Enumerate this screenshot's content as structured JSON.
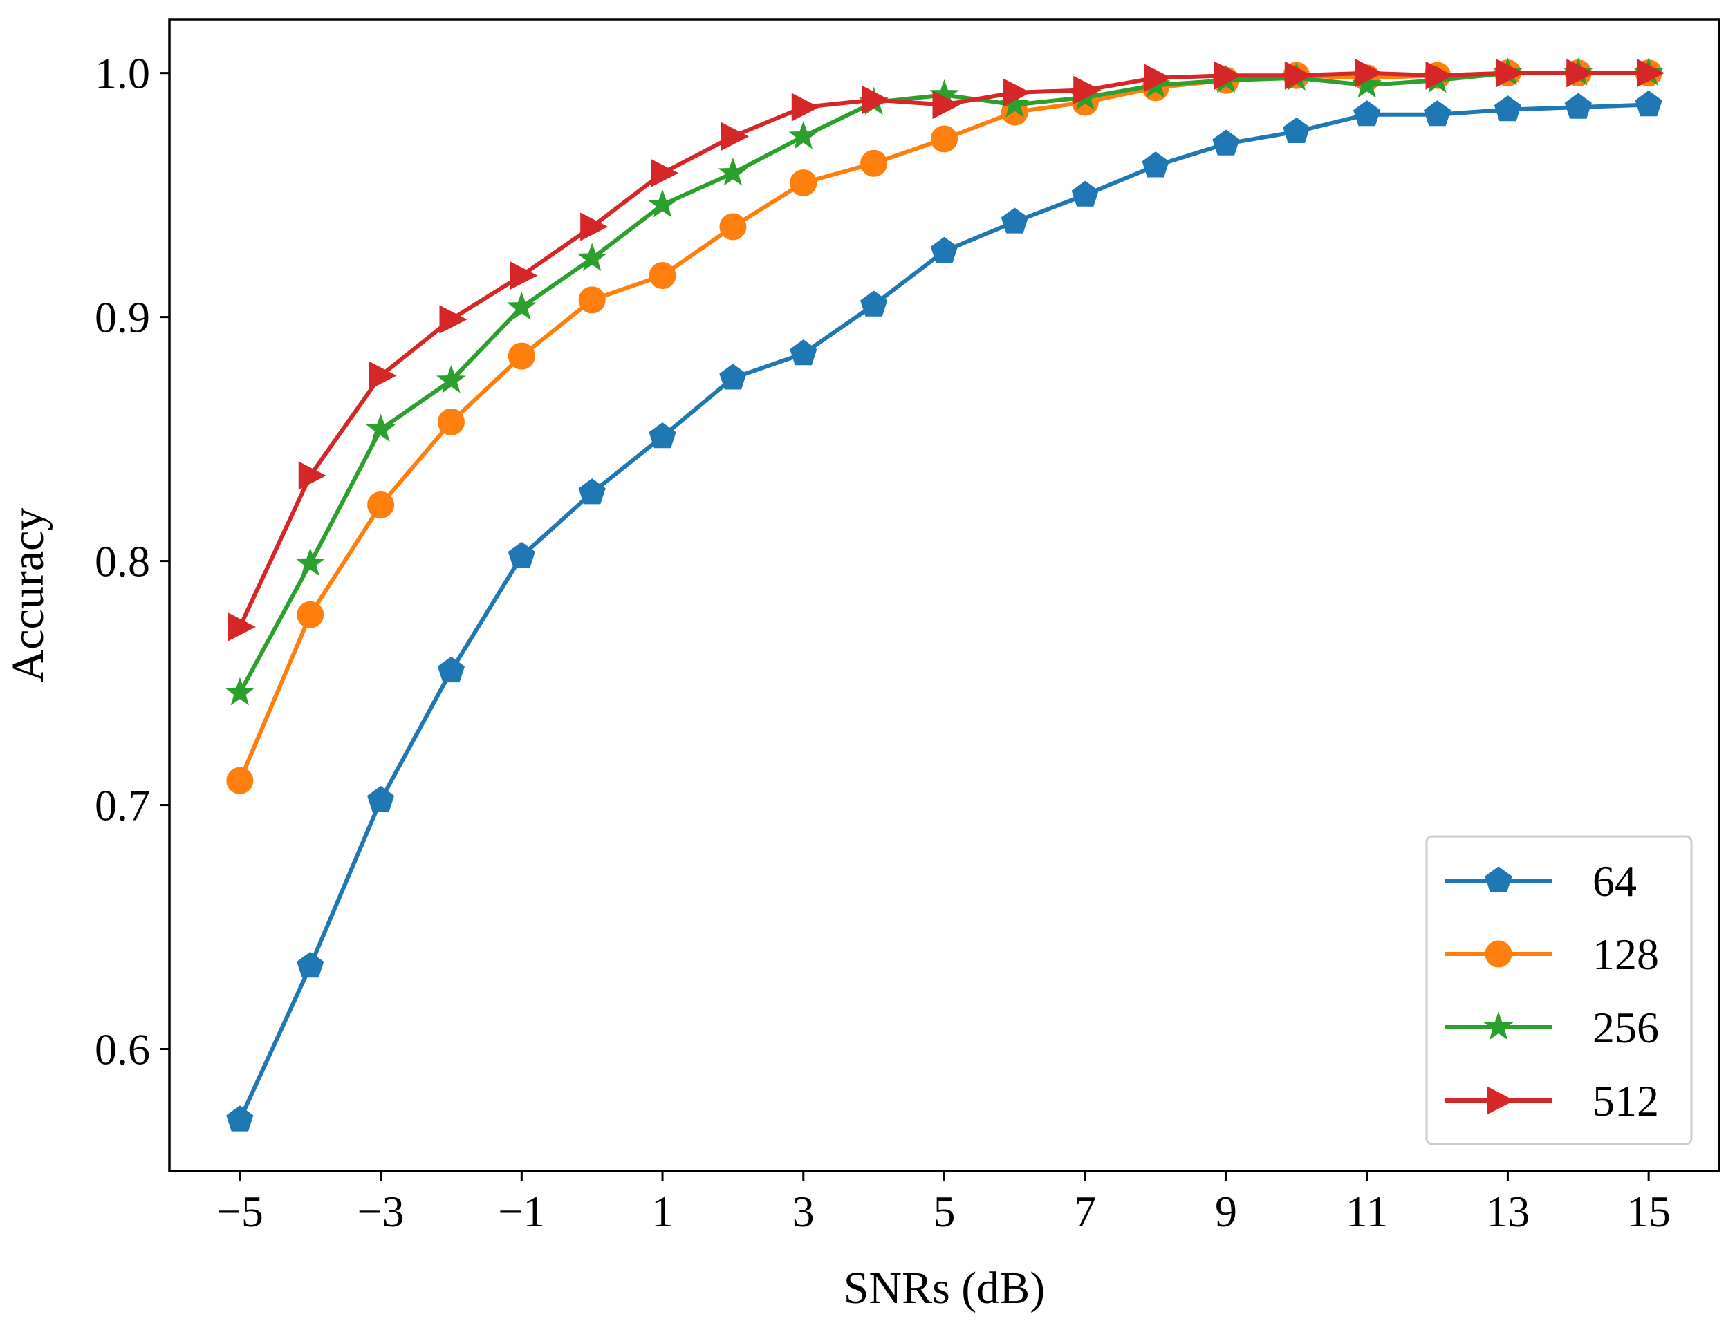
{
  "chart_data": {
    "type": "line",
    "title": "",
    "xlabel": "SNRs (dB)",
    "ylabel": "Accuracy",
    "xlim": [
      -6,
      16
    ],
    "ylim": [
      0.55,
      1.022
    ],
    "grid": false,
    "legend_position": "bottom-right",
    "x": [
      -5,
      -4,
      -3,
      -2,
      -1,
      0,
      1,
      2,
      3,
      4,
      5,
      6,
      7,
      8,
      9,
      10,
      11,
      12,
      13,
      14,
      15
    ],
    "xticks": [
      -5,
      -3,
      -1,
      1,
      3,
      5,
      7,
      9,
      11,
      13,
      15
    ],
    "xtick_labels": [
      "−5",
      "−3",
      "−1",
      "1",
      "3",
      "5",
      "7",
      "9",
      "11",
      "13",
      "15"
    ],
    "yticks": [
      0.6,
      0.7,
      0.8,
      0.9,
      1.0
    ],
    "ytick_labels": [
      "0.6",
      "0.7",
      "0.8",
      "0.9",
      "1.0"
    ],
    "series": [
      {
        "name": "64",
        "color": "#1f77b4",
        "marker": "pentagon",
        "values": [
          0.571,
          0.634,
          0.702,
          0.755,
          0.802,
          0.828,
          0.851,
          0.875,
          0.885,
          0.905,
          0.927,
          0.939,
          0.95,
          0.962,
          0.971,
          0.976,
          0.983,
          0.983,
          0.985,
          0.986,
          0.987
        ]
      },
      {
        "name": "128",
        "color": "#ff7f0e",
        "marker": "circle",
        "values": [
          0.71,
          0.778,
          0.823,
          0.857,
          0.884,
          0.907,
          0.917,
          0.937,
          0.955,
          0.963,
          0.973,
          0.984,
          0.988,
          0.994,
          0.997,
          0.999,
          0.998,
          0.999,
          1.0,
          1.0,
          1.0
        ]
      },
      {
        "name": "256",
        "color": "#2ca02c",
        "marker": "star",
        "values": [
          0.746,
          0.799,
          0.854,
          0.874,
          0.904,
          0.924,
          0.946,
          0.959,
          0.974,
          0.988,
          0.991,
          0.987,
          0.99,
          0.995,
          0.997,
          0.998,
          0.995,
          0.997,
          1.0,
          1.0,
          1.0
        ]
      },
      {
        "name": "512",
        "color": "#d62728",
        "marker": "triangle-right",
        "values": [
          0.773,
          0.835,
          0.876,
          0.899,
          0.917,
          0.937,
          0.959,
          0.974,
          0.986,
          0.989,
          0.987,
          0.992,
          0.993,
          0.998,
          0.999,
          0.999,
          1.0,
          0.999,
          1.0,
          1.0,
          1.0
        ]
      }
    ]
  }
}
